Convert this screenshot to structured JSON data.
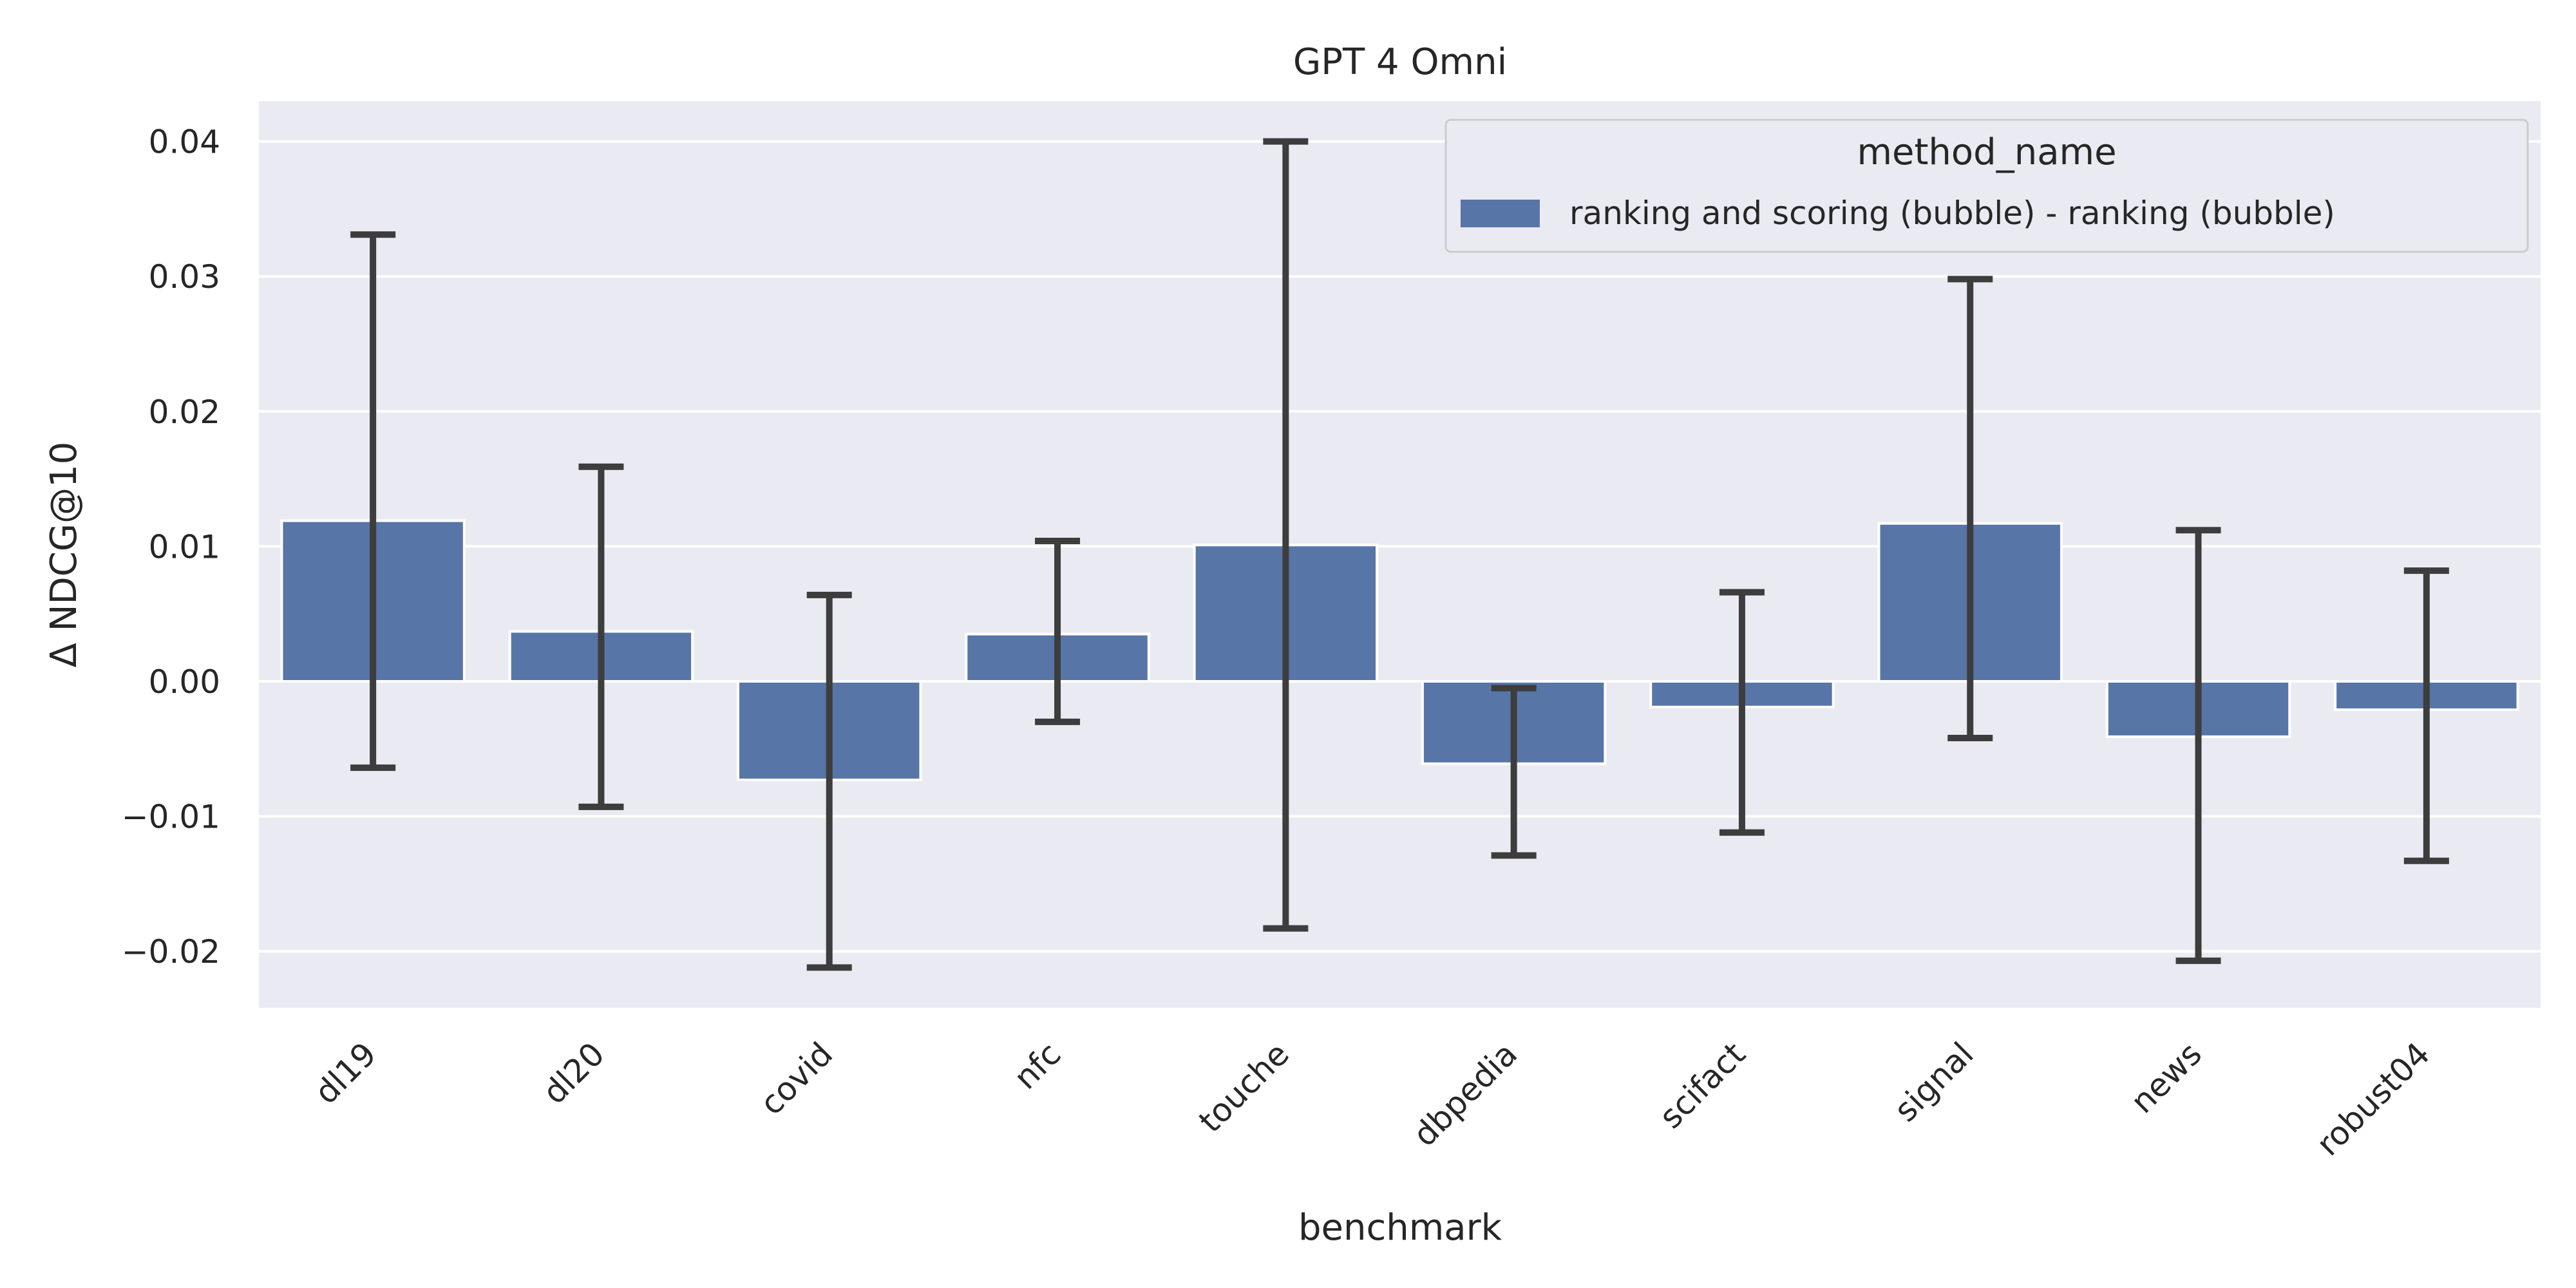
{
  "chart_data": {
    "type": "bar",
    "title": "GPT 4 Omni",
    "xlabel": "benchmark",
    "ylabel": "Δ NDCG@10",
    "categories": [
      "dl19",
      "dl20",
      "covid",
      "nfc",
      "touche",
      "dbpedia",
      "scifact",
      "signal",
      "news",
      "robust04"
    ],
    "series": [
      {
        "name": "ranking and scoring (bubble) - ranking (bubble)",
        "values": [
          0.0119,
          0.0037,
          -0.0073,
          0.0035,
          0.0101,
          -0.0061,
          -0.0019,
          0.0117,
          -0.0041,
          -0.0021
        ],
        "err_low": [
          -0.0064,
          -0.0093,
          -0.0212,
          -0.003,
          -0.0183,
          -0.0129,
          -0.0112,
          -0.0042,
          -0.0207,
          -0.0133
        ],
        "err_high": [
          0.0331,
          0.0159,
          0.0064,
          0.0104,
          0.04,
          -0.0005,
          0.0066,
          0.0298,
          0.0112,
          0.0082
        ]
      }
    ],
    "ylim": [
      -0.024,
      0.043
    ],
    "yticks": [
      "0.04",
      "0.03",
      "0.02",
      "0.01",
      "0.00",
      "−0.01",
      "−0.02"
    ],
    "ytick_values": [
      0.04,
      0.03,
      0.02,
      0.01,
      0.0,
      -0.01,
      -0.02
    ],
    "legend": {
      "title": "method_name",
      "placement": "top-right"
    },
    "grid": true,
    "colors": {
      "bar": "#5875a7",
      "error": "#3d3d3d",
      "background": "#eaeaf2",
      "grid": "#ffffff"
    }
  }
}
